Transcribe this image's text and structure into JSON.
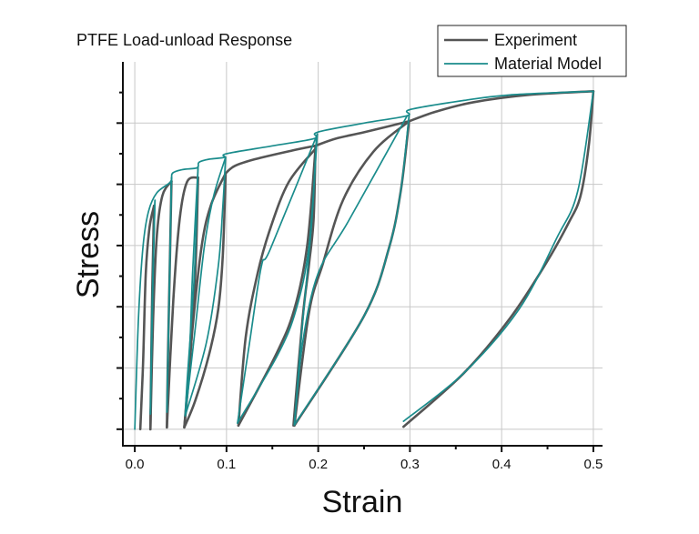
{
  "chart_data": {
    "type": "line",
    "title": "PTFE Load-unload Response",
    "xlabel": "Strain",
    "ylabel": "Stress",
    "xlim": [
      -0.013,
      0.51
    ],
    "ylim": [
      -0.27,
      6.0
    ],
    "x_ticks": [
      "0.0",
      "0.1",
      "0.2",
      "0.3",
      "0.4",
      "0.5"
    ],
    "x_tick_values": [
      0,
      0.1,
      0.2,
      0.3,
      0.4,
      0.5
    ],
    "y_tick_labels_shown": false,
    "grid": true,
    "legend_position": "top-right",
    "series": [
      {
        "name": "Experiment",
        "color": "#555555",
        "segments": [
          [
            [
              0.006,
              0
            ],
            [
              0.009,
              1.07
            ],
            [
              0.012,
              2.55
            ],
            [
              0.016,
              3.29
            ],
            [
              0.021,
              3.65
            ]
          ],
          [
            [
              0.021,
              3.65
            ],
            [
              0.019,
              2.26
            ],
            [
              0.017,
              0
            ]
          ],
          [
            [
              0.017,
              0
            ],
            [
              0.02,
              1.81
            ],
            [
              0.024,
              3.15
            ],
            [
              0.03,
              3.81
            ],
            [
              0.04,
              4.05
            ]
          ],
          [
            [
              0.04,
              4.05
            ],
            [
              0.038,
              2.55
            ],
            [
              0.036,
              1.07
            ],
            [
              0.035,
              0.03
            ]
          ],
          [
            [
              0.035,
              0.03
            ],
            [
              0.042,
              2.11
            ],
            [
              0.049,
              3.44
            ],
            [
              0.057,
              4.04
            ],
            [
              0.069,
              4.11
            ]
          ],
          [
            [
              0.069,
              4.11
            ],
            [
              0.066,
              2.55
            ],
            [
              0.06,
              1.07
            ],
            [
              0.054,
              0.03
            ]
          ],
          [
            [
              0.054,
              0.03
            ],
            [
              0.063,
              1.66
            ],
            [
              0.073,
              3.0
            ],
            [
              0.083,
              3.66
            ],
            [
              0.099,
              4.18
            ]
          ],
          [
            [
              0.099,
              4.18
            ],
            [
              0.096,
              2.85
            ],
            [
              0.091,
              1.96
            ],
            [
              0.081,
              1.22
            ],
            [
              0.066,
              0.47
            ],
            [
              0.054,
              0.03
            ]
          ],
          [
            [
              0.099,
              4.18
            ],
            [
              0.109,
              4.3
            ],
            [
              0.131,
              4.41
            ],
            [
              0.171,
              4.55
            ],
            [
              0.197,
              4.63
            ]
          ],
          [
            [
              0.113,
              0.06
            ],
            [
              0.121,
              1.51
            ],
            [
              0.134,
              2.55
            ],
            [
              0.148,
              3.29
            ],
            [
              0.168,
              4.04
            ],
            [
              0.197,
              4.58
            ]
          ],
          [
            [
              0.113,
              0.06
            ],
            [
              0.154,
              1.22
            ],
            [
              0.174,
              1.96
            ],
            [
              0.188,
              3.0
            ],
            [
              0.197,
              4.58
            ]
          ],
          [
            [
              0.197,
              4.63
            ],
            [
              0.195,
              3.44
            ],
            [
              0.19,
              2.7
            ],
            [
              0.183,
              1.81
            ],
            [
              0.173,
              0.06
            ]
          ],
          [
            [
              0.197,
              4.63
            ],
            [
              0.22,
              4.75
            ],
            [
              0.25,
              4.85
            ],
            [
              0.299,
              5.03
            ]
          ],
          [
            [
              0.174,
              0.06
            ],
            [
              0.19,
              1.91
            ],
            [
              0.205,
              2.7
            ],
            [
              0.227,
              3.74
            ],
            [
              0.26,
              4.53
            ],
            [
              0.299,
              5.03
            ]
          ],
          [
            [
              0.174,
              0.06
            ],
            [
              0.25,
              1.85
            ],
            [
              0.277,
              2.95
            ],
            [
              0.29,
              3.89
            ],
            [
              0.299,
              5.03
            ]
          ],
          [
            [
              0.299,
              5.03
            ],
            [
              0.329,
              5.19
            ],
            [
              0.369,
              5.34
            ],
            [
              0.429,
              5.46
            ],
            [
              0.5,
              5.52
            ]
          ],
          [
            [
              0.5,
              5.52
            ],
            [
              0.495,
              4.63
            ],
            [
              0.486,
              3.81
            ],
            [
              0.473,
              3.37
            ],
            [
              0.448,
              2.7
            ],
            [
              0.409,
              1.81
            ],
            [
              0.359,
              0.92
            ],
            [
              0.293,
              0.04
            ]
          ]
        ]
      },
      {
        "name": "Material Model",
        "color": "#1a8c8c",
        "segments": [
          [
            [
              0,
              0
            ],
            [
              0.004,
              1.81
            ],
            [
              0.009,
              2.99
            ],
            [
              0.015,
              3.56
            ],
            [
              0.024,
              3.86
            ],
            [
              0.039,
              4.04
            ],
            [
              0.041,
              4.18
            ],
            [
              0.052,
              4.24
            ],
            [
              0.068,
              4.27
            ],
            [
              0.07,
              4.36
            ],
            [
              0.081,
              4.41
            ],
            [
              0.098,
              4.44
            ],
            [
              0.1,
              4.5
            ],
            [
              0.151,
              4.63
            ],
            [
              0.196,
              4.75
            ],
            [
              0.199,
              4.85
            ],
            [
              0.25,
              5.0
            ],
            [
              0.297,
              5.12
            ],
            [
              0.3,
              5.22
            ],
            [
              0.359,
              5.37
            ],
            [
              0.409,
              5.46
            ],
            [
              0.5,
              5.52
            ]
          ],
          [
            [
              0.022,
              3.74
            ],
            [
              0.019,
              2.11
            ],
            [
              0.017,
              0.25
            ]
          ],
          [
            [
              0.017,
              0.25
            ],
            [
              0.02,
              2.55
            ],
            [
              0.022,
              3.74
            ]
          ],
          [
            [
              0.04,
              4.11
            ],
            [
              0.038,
              2.55
            ],
            [
              0.035,
              0.28
            ]
          ],
          [
            [
              0.035,
              0.28
            ],
            [
              0.037,
              1.81
            ],
            [
              0.04,
              4.11
            ]
          ],
          [
            [
              0.069,
              4.29
            ],
            [
              0.065,
              2.55
            ],
            [
              0.057,
              0.77
            ],
            [
              0.055,
              0.22
            ]
          ],
          [
            [
              0.055,
              0.22
            ],
            [
              0.06,
              1.36
            ],
            [
              0.063,
              2.55
            ],
            [
              0.069,
              4.29
            ]
          ],
          [
            [
              0.099,
              4.44
            ],
            [
              0.096,
              3.64
            ],
            [
              0.091,
              2.66
            ],
            [
              0.078,
              1.41
            ],
            [
              0.055,
              0.22
            ]
          ],
          [
            [
              0.055,
              0.22
            ],
            [
              0.066,
              1.66
            ],
            [
              0.076,
              3.0
            ],
            [
              0.086,
              3.81
            ],
            [
              0.099,
              4.44
            ]
          ],
          [
            [
              0.112,
              0.1
            ],
            [
              0.125,
              1.4
            ],
            [
              0.138,
              2.66
            ],
            [
              0.148,
              2.95
            ],
            [
              0.199,
              4.82
            ]
          ],
          [
            [
              0.112,
              0.1
            ],
            [
              0.156,
              1.22
            ],
            [
              0.176,
              1.96
            ],
            [
              0.19,
              3.0
            ],
            [
              0.199,
              4.82
            ]
          ],
          [
            [
              0.198,
              4.75
            ],
            [
              0.193,
              3.4
            ],
            [
              0.181,
              1.41
            ],
            [
              0.174,
              0.07
            ]
          ],
          [
            [
              0.174,
              0.07
            ],
            [
              0.183,
              1.41
            ],
            [
              0.2,
              2.55
            ],
            [
              0.233,
              3.4
            ],
            [
              0.297,
              5.12
            ]
          ],
          [
            [
              0.174,
              0.07
            ],
            [
              0.25,
              1.85
            ],
            [
              0.277,
              2.95
            ],
            [
              0.29,
              3.89
            ],
            [
              0.299,
              5.12
            ]
          ],
          [
            [
              0.293,
              0.13
            ],
            [
              0.359,
              0.92
            ],
            [
              0.419,
              1.96
            ],
            [
              0.46,
              3.12
            ],
            [
              0.483,
              3.89
            ],
            [
              0.5,
              5.52
            ]
          ]
        ]
      }
    ]
  }
}
